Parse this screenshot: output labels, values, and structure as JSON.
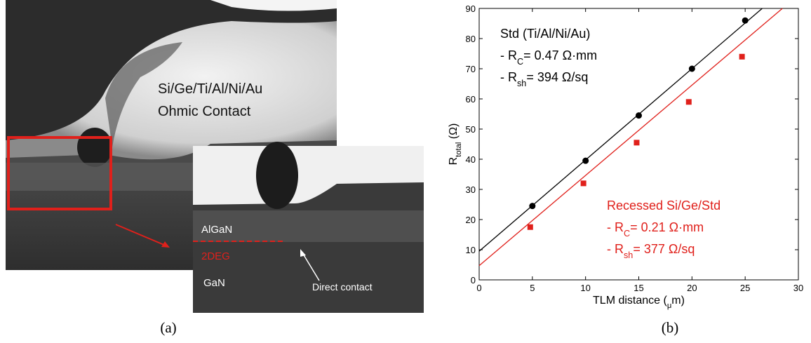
{
  "panel_a": {
    "labels": {
      "contact": "Si/Ge/Ti/Al/Ni/Au",
      "contact2": "Ohmic Contact",
      "algan": "AlGaN",
      "twodeg": "2DEG",
      "gan": "GaN",
      "direct": "Direct contact"
    },
    "caption": "(a)"
  },
  "chart_data": {
    "type": "scatter",
    "caption": "(b)",
    "x_label": [
      "TLM distance (",
      "μ",
      "m)"
    ],
    "y_label": [
      "R",
      "total",
      " (Ω)"
    ],
    "xlim": [
      0,
      30
    ],
    "xticks": [
      0,
      5,
      10,
      15,
      20,
      25,
      30
    ],
    "ylim": [
      0,
      90
    ],
    "yticks": [
      0,
      10,
      20,
      30,
      40,
      50,
      60,
      70,
      80,
      90
    ],
    "series": [
      {
        "color": "#000000",
        "marker": "circle",
        "x": [
          5,
          10,
          15,
          20,
          25
        ],
        "values": [
          24.5,
          39.5,
          54.5,
          70,
          86
        ],
        "fit_x": [
          0,
          26.6
        ],
        "fit_values": [
          9.5,
          90
        ]
      },
      {
        "color": "#e0201b",
        "marker": "square",
        "x": [
          4.8,
          9.8,
          14.8,
          19.7,
          24.7
        ],
        "values": [
          17.5,
          32,
          45.5,
          59,
          74
        ],
        "fit_x": [
          0,
          28.5
        ],
        "fit_values": [
          4.7,
          90
        ]
      }
    ],
    "annotations": [
      {
        "color": "#000000",
        "lines": [
          [
            "Std (Ti/Al/Ni/Au)"
          ],
          [
            "- R",
            "C",
            "= 0.47 Ω·mm"
          ],
          [
            "- R",
            "sh",
            "= 394 Ω/sq"
          ]
        ]
      },
      {
        "color": "#e0201b",
        "lines": [
          [
            "Recessed Si/Ge/Std"
          ],
          [
            "- R",
            "C",
            "= 0.21 Ω·mm"
          ],
          [
            "- R",
            "sh",
            "= 377 Ω/sq"
          ]
        ]
      }
    ]
  }
}
